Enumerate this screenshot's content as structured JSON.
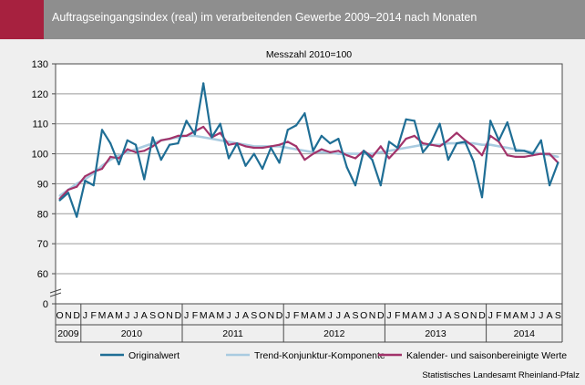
{
  "header": {
    "title": "Auftragseingangsindex (real) im verarbeitenden Gewerbe 2009–2014 nach Monaten",
    "accent_color": "#a7213f",
    "bar_color": "#8e8e8e"
  },
  "source": "Statistisches Landesamt Rheinland-Pfalz",
  "chart_data": {
    "type": "line",
    "title": "Auftragseingangsindex (real) im verarbeitenden Gewerbe 2009–2014 nach Monaten",
    "subtitle": "Messzahl 2010=100",
    "xlabel": "",
    "ylabel": "",
    "ylim": [
      0,
      130
    ],
    "y_ticks": [
      0,
      60,
      70,
      80,
      90,
      100,
      110,
      120,
      130
    ],
    "y_axis_break": [
      0,
      60
    ],
    "grid": true,
    "legend_position": "bottom",
    "month_labels": [
      "O",
      "N",
      "D",
      "J",
      "F",
      "M",
      "A",
      "M",
      "J",
      "J",
      "A",
      "S",
      "O",
      "N",
      "D",
      "J",
      "F",
      "M",
      "A",
      "M",
      "J",
      "J",
      "A",
      "S",
      "O",
      "N",
      "D",
      "J",
      "F",
      "M",
      "A",
      "M",
      "J",
      "J",
      "A",
      "S",
      "O",
      "N",
      "D",
      "J",
      "F",
      "M",
      "A",
      "M",
      "J",
      "J",
      "A",
      "S",
      "O",
      "N",
      "D",
      "J",
      "F",
      "M",
      "A",
      "M",
      "J",
      "J",
      "A",
      "S"
    ],
    "years": [
      {
        "label": "2009",
        "start": 0,
        "end": 3
      },
      {
        "label": "2010",
        "start": 3,
        "end": 15
      },
      {
        "label": "2011",
        "start": 15,
        "end": 27
      },
      {
        "label": "2012",
        "start": 27,
        "end": 39
      },
      {
        "label": "2013",
        "start": 39,
        "end": 51
      },
      {
        "label": "2014",
        "start": 51,
        "end": 60
      }
    ],
    "series": [
      {
        "name": "Originalwert",
        "color": "#1f6e95",
        "values": [
          84.5,
          87,
          79,
          91,
          89.5,
          108,
          103.5,
          96.5,
          104.5,
          103,
          91.5,
          105.5,
          98,
          103,
          103.5,
          111,
          106.5,
          123.5,
          105.5,
          110,
          98.5,
          103.5,
          96,
          100,
          95,
          102,
          97,
          108,
          109.5,
          113.5,
          101,
          106,
          103.5,
          105,
          95.5,
          89.5,
          101,
          98,
          89.5,
          104,
          102,
          111.5,
          111,
          100.5,
          104,
          110,
          98,
          103.5,
          104,
          97.5,
          85.5,
          111,
          104.5,
          110.5,
          101,
          101,
          100,
          104.5,
          89.5,
          97
        ]
      },
      {
        "name": "Trend-Konjunktur-Komponente",
        "color": "#a9cbe0",
        "values": [
          86,
          88,
          90,
          91.5,
          93.5,
          96,
          98,
          99.5,
          100.5,
          101.5,
          102.5,
          103.5,
          104.5,
          105,
          105.5,
          106,
          106,
          105.5,
          105,
          104.5,
          104,
          103.5,
          103,
          102.5,
          102.5,
          102.5,
          102.5,
          102,
          101.5,
          101,
          100.5,
          100.5,
          100.5,
          100,
          100,
          100,
          100,
          100,
          100.5,
          101,
          101.5,
          102,
          102.5,
          103,
          103,
          103,
          103.5,
          103.5,
          103.5,
          103.5,
          103,
          103,
          102.5,
          102,
          101.5,
          101,
          100.5,
          100,
          99.5,
          99
        ]
      },
      {
        "name": "Kalender- und saisonbereinigte Werte",
        "color": "#a2336a",
        "values": [
          85,
          88,
          89,
          92.5,
          94,
          95,
          99,
          98.5,
          101.5,
          100.5,
          101,
          102.5,
          104.5,
          105,
          106,
          106,
          107.5,
          109,
          105.5,
          107,
          103,
          103.5,
          102.5,
          102,
          102,
          102.5,
          103,
          104,
          102.5,
          98,
          100,
          101.5,
          100.5,
          101,
          99.5,
          98.5,
          101,
          99,
          102.5,
          98.5,
          101.5,
          105,
          106,
          103.5,
          103,
          102.5,
          104.5,
          107,
          104.5,
          102.5,
          99.5,
          106,
          104,
          99.5,
          99,
          99,
          99.5,
          100,
          100,
          97
        ]
      }
    ]
  }
}
